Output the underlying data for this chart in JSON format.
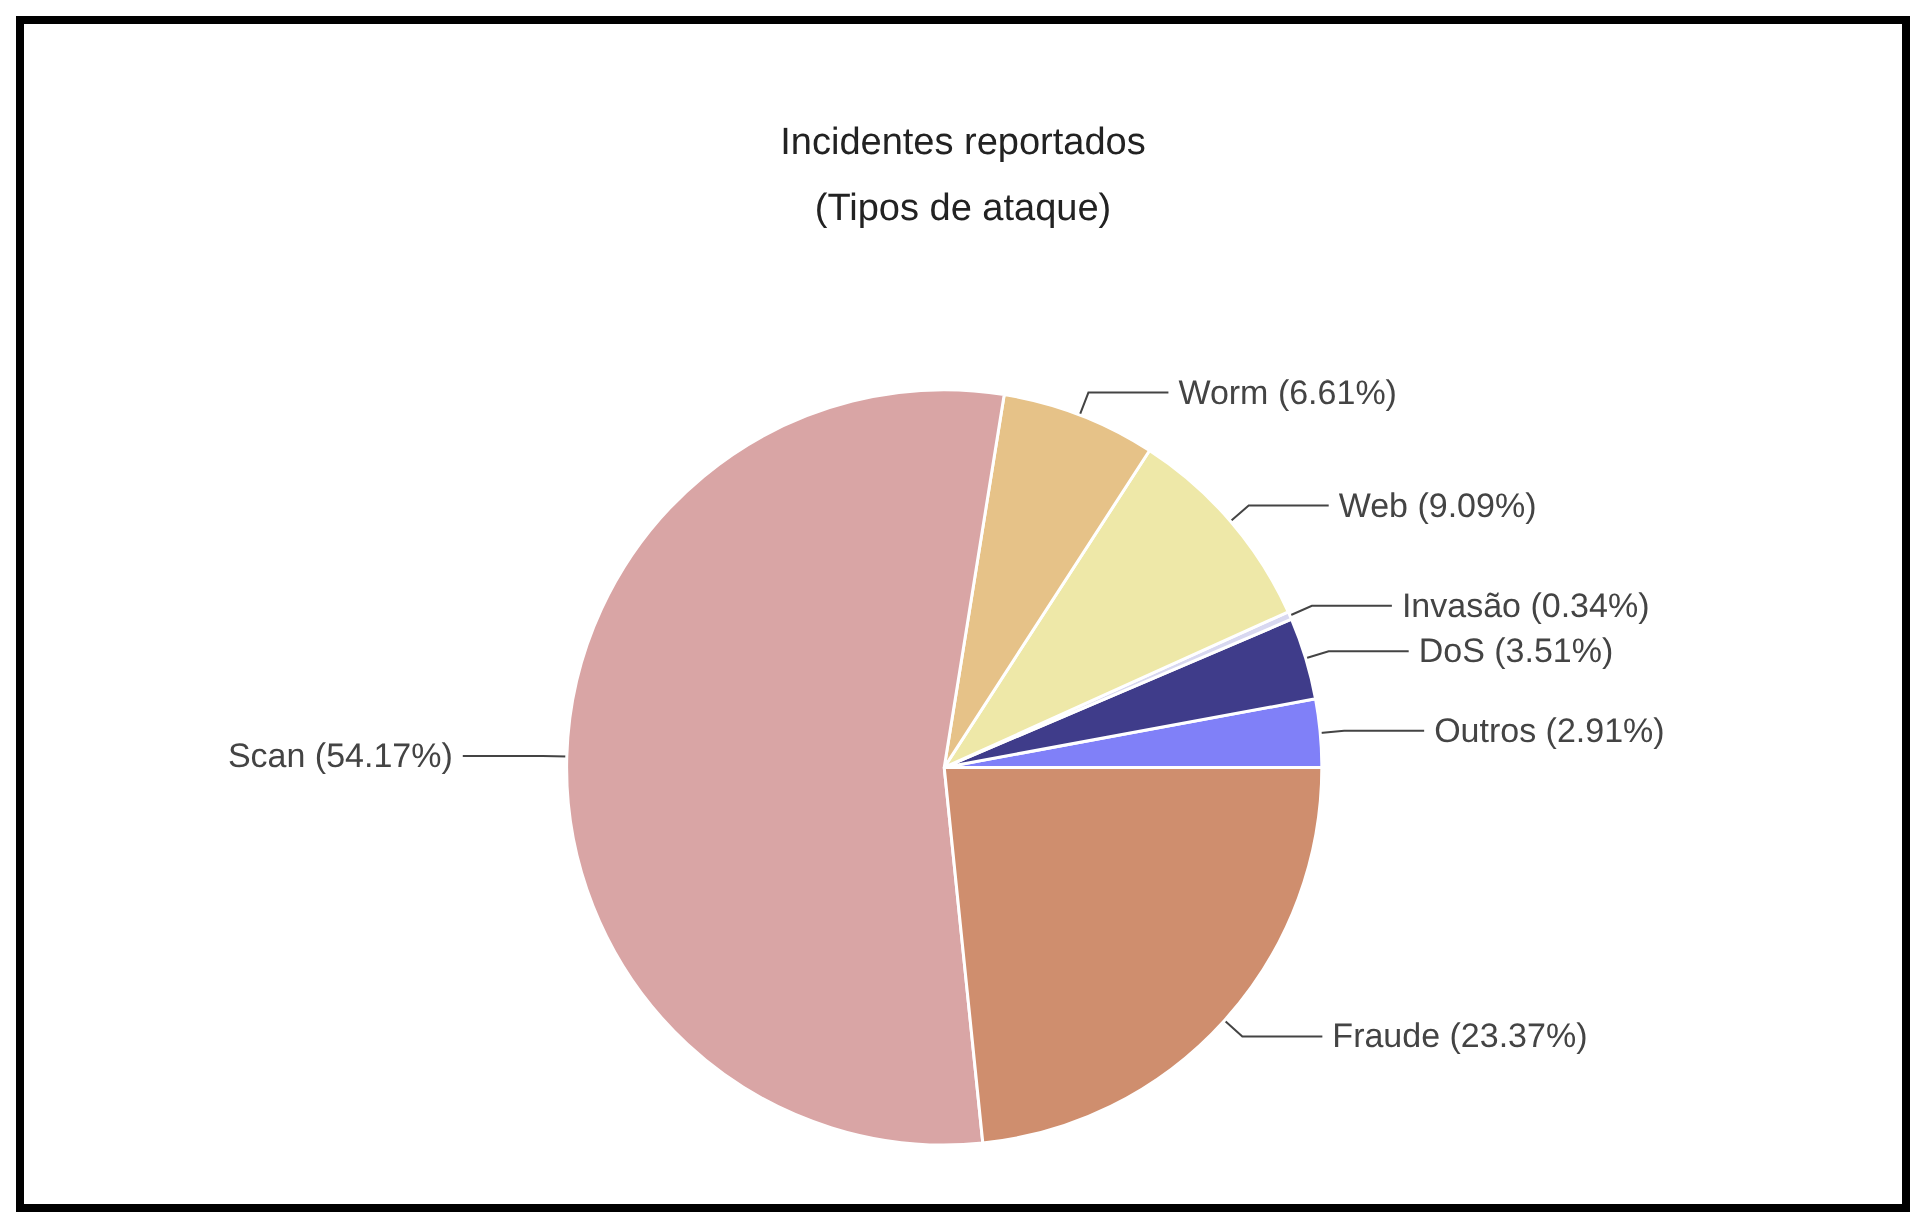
{
  "chart_data": {
    "type": "pie",
    "title": "Incidentes reportados",
    "subtitle": "(Tipos de ataque)",
    "categories": [
      "Outros (2.91%)",
      "DoS (3.51%)",
      "Invasão (0.34%)",
      "Web (9.09%)",
      "Worm (6.61%)",
      "Scan (54.17%)",
      "Fraude (23.37%)"
    ],
    "values": [
      2.91,
      3.51,
      0.34,
      9.09,
      6.61,
      54.17,
      23.37
    ],
    "colors": [
      "#8080f8",
      "#3f3c8a",
      "#d8d8f0",
      "#eee8a8",
      "#e6c288",
      "#d9a5a5",
      "#cf8e6e"
    ],
    "legend": false
  }
}
